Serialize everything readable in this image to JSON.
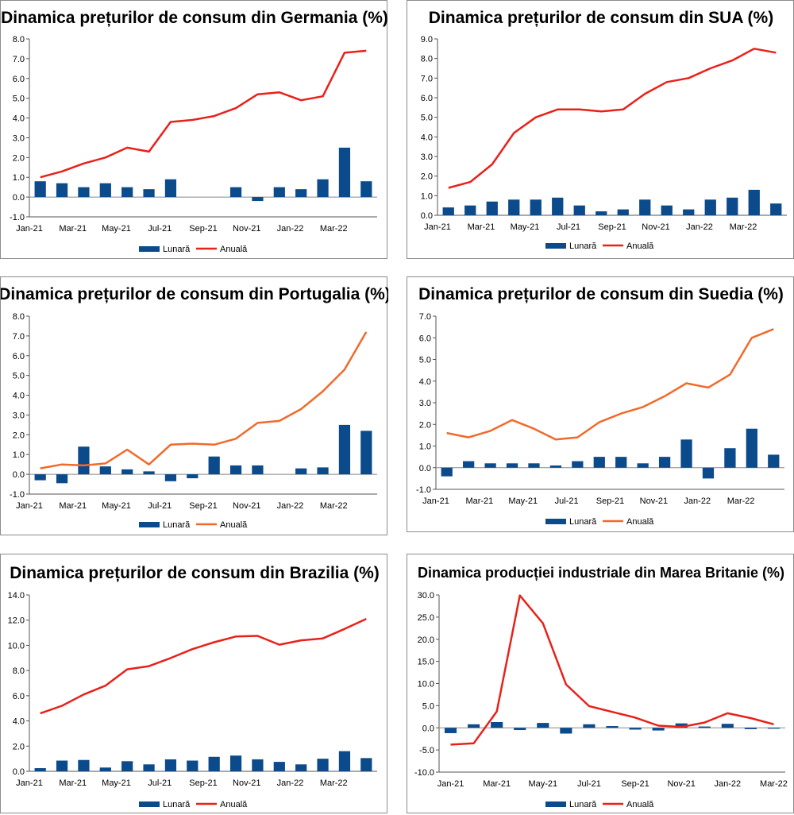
{
  "charts": [
    {
      "type": "bar+line",
      "title": "Dinamica prețurilor de consum din Germania (%)",
      "categories": [
        "Jan-21",
        "Feb-21",
        "Mar-21",
        "Apr-21",
        "May-21",
        "Jun-21",
        "Jul-21",
        "Aug-21",
        "Sep-21",
        "Oct-21",
        "Nov-21",
        "Dec-21",
        "Jan-22",
        "Feb-22",
        "Mar-22",
        "Apr-22"
      ],
      "x_tick_labels": [
        "Jan-21",
        "Mar-21",
        "May-21",
        "Jul-21",
        "Sep-21",
        "Nov-21",
        "Jan-22",
        "Mar-22"
      ],
      "ylim": [
        -1,
        8
      ],
      "ystep": 1,
      "ydecimals": 1,
      "line_color": "#e8211a",
      "bar_color": "#0b4a8b",
      "series": [
        {
          "name": "Lunară",
          "kind": "bar",
          "values": [
            0.8,
            0.7,
            0.5,
            0.7,
            0.5,
            0.4,
            0.9,
            0.0,
            0.0,
            0.5,
            -0.2,
            0.5,
            0.4,
            0.9,
            2.5,
            0.8
          ]
        },
        {
          "name": "Anuală",
          "kind": "line",
          "values": [
            1.0,
            1.3,
            1.7,
            2.0,
            2.5,
            2.3,
            3.8,
            3.9,
            4.1,
            4.5,
            5.2,
            5.3,
            4.9,
            5.1,
            7.3,
            7.4
          ]
        }
      ],
      "legend": "bottom",
      "grid": false
    },
    {
      "type": "bar+line",
      "title": "Dinamica prețurilor de consum din SUA (%)",
      "categories": [
        "Jan-21",
        "Feb-21",
        "Mar-21",
        "Apr-21",
        "May-21",
        "Jun-21",
        "Jul-21",
        "Aug-21",
        "Sep-21",
        "Oct-21",
        "Nov-21",
        "Dec-21",
        "Jan-22",
        "Feb-22",
        "Mar-22",
        "Apr-22"
      ],
      "x_tick_labels": [
        "Jan-21",
        "Mar-21",
        "May-21",
        "Jul-21",
        "Sep-21",
        "Nov-21",
        "Jan-22",
        "Mar-22"
      ],
      "ylim": [
        0,
        9
      ],
      "ystep": 1,
      "ydecimals": 1,
      "line_color": "#e8211a",
      "bar_color": "#0b4a8b",
      "series": [
        {
          "name": "Lunară",
          "kind": "bar",
          "values": [
            0.4,
            0.5,
            0.7,
            0.8,
            0.8,
            0.9,
            0.5,
            0.2,
            0.3,
            0.8,
            0.5,
            0.3,
            0.8,
            0.9,
            1.3,
            0.6
          ]
        },
        {
          "name": "Anuală",
          "kind": "line",
          "values": [
            1.4,
            1.7,
            2.6,
            4.2,
            5.0,
            5.4,
            5.4,
            5.3,
            5.4,
            6.2,
            6.8,
            7.0,
            7.5,
            7.9,
            8.5,
            8.3
          ]
        }
      ],
      "legend": "bottom",
      "grid": false
    },
    {
      "type": "bar+line",
      "title": "Dinamica prețurilor de consum din Portugalia (%)",
      "categories": [
        "Jan-21",
        "Feb-21",
        "Mar-21",
        "Apr-21",
        "May-21",
        "Jun-21",
        "Jul-21",
        "Aug-21",
        "Sep-21",
        "Oct-21",
        "Nov-21",
        "Dec-21",
        "Jan-22",
        "Feb-22",
        "Mar-22",
        "Apr-22"
      ],
      "x_tick_labels": [
        "Jan-21",
        "Mar-21",
        "May-21",
        "Jul-21",
        "Sep-21",
        "Nov-21",
        "Jan-22",
        "Mar-22"
      ],
      "ylim": [
        -1,
        8
      ],
      "ystep": 1,
      "ydecimals": 1,
      "line_color": "#f06a2a",
      "bar_color": "#0b4a8b",
      "series": [
        {
          "name": "Lunară",
          "kind": "bar",
          "values": [
            -0.3,
            -0.45,
            1.4,
            0.4,
            0.25,
            0.15,
            -0.35,
            -0.2,
            0.9,
            0.45,
            0.45,
            0.0,
            0.3,
            0.35,
            2.5,
            2.2
          ]
        },
        {
          "name": "Anuală",
          "kind": "line",
          "values": [
            0.3,
            0.5,
            0.45,
            0.55,
            1.25,
            0.5,
            1.5,
            1.55,
            1.5,
            1.8,
            2.6,
            2.7,
            3.3,
            4.2,
            5.3,
            7.2
          ]
        }
      ],
      "legend": "bottom",
      "grid": false
    },
    {
      "type": "bar+line",
      "title": "Dinamica prețurilor de consum din Suedia (%)",
      "categories": [
        "Jan-21",
        "Feb-21",
        "Mar-21",
        "Apr-21",
        "May-21",
        "Jun-21",
        "Jul-21",
        "Aug-21",
        "Sep-21",
        "Oct-21",
        "Nov-21",
        "Dec-21",
        "Jan-22",
        "Feb-22",
        "Mar-22",
        "Apr-22"
      ],
      "x_tick_labels": [
        "Jan-21",
        "Mar-21",
        "May-21",
        "Jul-21",
        "Sep-21",
        "Nov-21",
        "Jan-22",
        "Mar-22"
      ],
      "ylim": [
        -1,
        7
      ],
      "ystep": 1,
      "ydecimals": 1,
      "line_color": "#f06a2a",
      "bar_color": "#0b4a8b",
      "series": [
        {
          "name": "Lunară",
          "kind": "bar",
          "values": [
            -0.4,
            0.3,
            0.2,
            0.2,
            0.2,
            0.1,
            0.3,
            0.5,
            0.5,
            0.2,
            0.5,
            1.3,
            -0.5,
            0.9,
            1.8,
            0.6
          ]
        },
        {
          "name": "Anuală",
          "kind": "line",
          "values": [
            1.6,
            1.4,
            1.7,
            2.2,
            1.8,
            1.3,
            1.4,
            2.1,
            2.5,
            2.8,
            3.3,
            3.9,
            3.7,
            4.3,
            6.0,
            6.4
          ]
        }
      ],
      "legend": "bottom",
      "grid": false
    },
    {
      "type": "bar+line",
      "title": "Dinamica prețurilor de consum din Brazilia (%)",
      "categories": [
        "Jan-21",
        "Feb-21",
        "Mar-21",
        "Apr-21",
        "May-21",
        "Jun-21",
        "Jul-21",
        "Aug-21",
        "Sep-21",
        "Oct-21",
        "Nov-21",
        "Dec-21",
        "Jan-22",
        "Feb-22",
        "Mar-22",
        "Apr-22"
      ],
      "x_tick_labels": [
        "Jan-21",
        "Mar-21",
        "May-21",
        "Jul-21",
        "Sep-21",
        "Nov-21",
        "Jan-22",
        "Mar-22"
      ],
      "ylim": [
        0,
        14
      ],
      "ystep": 2,
      "ydecimals": 1,
      "line_color": "#e8211a",
      "bar_color": "#0b4a8b",
      "series": [
        {
          "name": "Lunară",
          "kind": "bar",
          "values": [
            0.25,
            0.85,
            0.9,
            0.3,
            0.8,
            0.55,
            0.95,
            0.85,
            1.15,
            1.25,
            0.95,
            0.75,
            0.55,
            1.0,
            1.6,
            1.05
          ]
        },
        {
          "name": "Anuală",
          "kind": "line",
          "values": [
            4.6,
            5.2,
            6.1,
            6.8,
            8.1,
            8.35,
            8.99,
            9.7,
            10.25,
            10.7,
            10.75,
            10.05,
            10.4,
            10.55,
            11.3,
            12.1
          ]
        }
      ],
      "legend": "bottom",
      "grid": false
    },
    {
      "type": "bar+line",
      "title": "Dinamica producției industriale din Marea Britanie (%)",
      "categories": [
        "Jan-21",
        "Feb-21",
        "Mar-21",
        "Apr-21",
        "May-21",
        "Jun-21",
        "Jul-21",
        "Aug-21",
        "Sep-21",
        "Oct-21",
        "Nov-21",
        "Dec-21",
        "Jan-22",
        "Feb-22",
        "Mar-22"
      ],
      "x_tick_labels": [
        "Jan-21",
        "Mar-21",
        "May-21",
        "Jul-21",
        "Sep-21",
        "Nov-21",
        "Jan-22",
        "Mar-22"
      ],
      "ylim": [
        -10,
        30
      ],
      "ystep": 5,
      "ydecimals": 1,
      "line_color": "#e8211a",
      "bar_color": "#0b4a8b",
      "series": [
        {
          "name": "Lunară",
          "kind": "bar",
          "values": [
            -1.2,
            0.8,
            1.3,
            -0.5,
            1.1,
            -1.3,
            0.8,
            0.4,
            -0.4,
            -0.6,
            1.0,
            0.3,
            0.9,
            -0.3,
            -0.2
          ]
        },
        {
          "name": "Anuală",
          "kind": "line",
          "values": [
            -3.8,
            -3.5,
            3.7,
            29.9,
            23.6,
            9.8,
            4.9,
            3.6,
            2.3,
            0.5,
            0.2,
            1.2,
            3.3,
            2.2,
            0.8
          ]
        }
      ],
      "legend": "bottom",
      "grid": false
    }
  ]
}
